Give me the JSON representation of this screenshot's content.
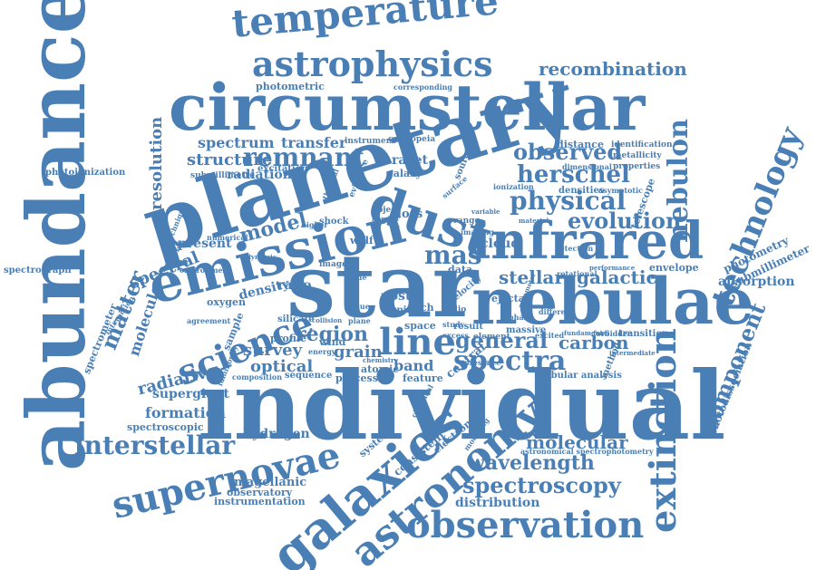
{
  "style": {
    "word_color": "#4a7fb5",
    "background": "#ffffff"
  },
  "words": {
    "individual": "individual",
    "planetary": "planetary",
    "circumstellar": "circumstellar",
    "abundance": "abundance",
    "star": "star",
    "nebulae": "nebulae",
    "emission": "emission",
    "dust": "dust",
    "infrared": "infrared",
    "galaxies": "galaxies",
    "astronomy": "astronomy",
    "observation": "observation",
    "supernovae": "supernovae",
    "extinction": "extinction",
    "technology": "technology",
    "astrophysics": "astrophysics",
    "temperature": "temperature",
    "science": "science",
    "line": "line",
    "spectra": "spectra",
    "nebulon": "nebulon",
    "interstellar": "interstellar",
    "component": "component",
    "physical": "physical",
    "evolution": "evolution",
    "herschel": "herschel",
    "observed": "observed",
    "remnant": "remnant",
    "general": "general",
    "matter": "matter",
    "spectroscopy": "spectroscopy",
    "wavelength": "wavelength",
    "molecular": "molecular",
    "region": "region",
    "recombination": "recombination",
    "model": "model",
    "mas": "mas",
    "structure": "structure",
    "spectrum": "spectrum",
    "transfer": "transfer",
    "resolution": "resolution",
    "radiation": "radiation",
    "photometric": "photometric",
    "photoionization": "photoionization",
    "spectrograph": "spectrograph",
    "spectrometer": "spectrometer",
    "molecule": "molecule",
    "radiative": "radiative",
    "supergiant": "supergiant",
    "formation": "formation",
    "spectroscopic": "spectroscopic",
    "hydrogen": "hydrogen",
    "magellanic": "magellanic",
    "observatory": "observatory",
    "instrumentation": "instrumentation",
    "distribution": "distribution",
    "optical": "optical",
    "survey": "survey",
    "grain": "grain",
    "carbon": "carbon",
    "stellar": "stellar",
    "galactic": "galactic",
    "photometry": "photometry",
    "submillimeter": "submillimeter",
    "absorption": "absorption",
    "photodissociation": "photodissociation",
    "envelope": "envelope",
    "telescope": "telescope",
    "cloud": "cloud",
    "data": "data",
    "spectral": "spectral",
    "present": "present",
    "density": "density",
    "oxygen": "oxygen",
    "ratio": "ratio",
    "sample": "sample",
    "profile": "profile",
    "band": "band",
    "atomic": "atomic",
    "processes": "processes",
    "feature": "feature",
    "central": "central",
    "consistent": "consistent",
    "system": "system",
    "electron": "electron",
    "nebular analysis": "nebular analysis",
    "method": "method",
    "transition": "transition",
    "massive": "massive",
    "result": "result",
    "ejecta": "ejecta",
    "velocity": "velocity",
    "post": "post",
    "rich": "rich",
    "space": "space",
    "shock": "shock",
    "wolf": "wolf",
    "rayet": "rayet",
    "galaxy": "galaxy",
    "loss": "loss",
    "distance": "distance",
    "identification": "identification",
    "metallicity": "metallicity",
    "properties": "properties",
    "densities": "densities",
    "asymptotic": "asymptotic",
    "detection": "detection",
    "rotational": "rotational",
    "excitation": "excitation",
    "instrument": "instrument",
    "cassiopeia": "cassiopeia",
    "corresponding": "corresponding",
    "submillimetre": "submillimetre",
    "technique": "technique",
    "environment": "environment",
    "numerical": "numerical",
    "calibration": "calibration",
    "silicate": "silicate",
    "sequence": "sequence",
    "composition": "composition",
    "luminosity": "luminosity",
    "radio": "radio",
    "element": "element",
    "excess": "excess",
    "range": "range",
    "imaging": "imaging",
    "excited": "excited",
    "fundamental": "fundamental",
    "forbidden": "forbidden",
    "intermediate": "intermediate",
    "performance": "performance",
    "astronomical spectrophotometry": "astronomical spectrophotometry",
    "different": "different",
    "parameter": "parameter",
    "material": "material",
    "dimensional": "dimensional",
    "ionization": "ionization",
    "thermal": "thermal",
    "higher": "higher",
    "surface": "surface",
    "source": "source",
    "object": "object",
    "number": "number",
    "evidence": "evidence",
    "image": "image",
    "value": "value",
    "mode": "mode",
    "plane": "plane",
    "chemical": "chemical",
    "modeling": "modeling",
    "presence": "presence",
    "interaction": "interaction",
    "agreement": "agreement",
    "dynamic": "dynamic",
    "spire": "spire",
    "collision": "collision",
    "chemistry": "chemistry",
    "iphas": "iphas",
    "variable": "variable",
    "study": "study",
    "wind": "wind",
    "energy": "energy"
  }
}
